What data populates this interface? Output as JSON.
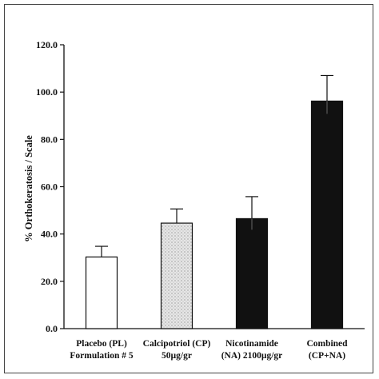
{
  "chart_data": {
    "type": "bar",
    "ylabel": "% Orthokeratosis / Scale",
    "ylim": [
      0,
      120
    ],
    "yticks": [
      "0.0",
      "20.0",
      "40.0",
      "60.0",
      "80.0",
      "100.0",
      "120.0"
    ],
    "grid": false,
    "categories": [
      {
        "line1": "Placebo (PL)",
        "line2": "Formulation # 5"
      },
      {
        "line1": "Calcipotriol (CP)",
        "line2": "50µg/gr"
      },
      {
        "line1": "Nicotinamide",
        "line2": "(NA) 2100µg/gr"
      },
      {
        "line1": "Combined",
        "line2": "(CP+NA)"
      }
    ],
    "values": [
      30.3,
      44.6,
      46.5,
      96.2
    ],
    "error_upper": [
      4.5,
      6.0,
      9.3,
      10.8
    ],
    "bar_fills": [
      "#ffffff",
      "#d9d9d9",
      "#111111",
      "#111111"
    ],
    "bar_styles": [
      "empty",
      "stippled",
      "solid",
      "solid"
    ]
  }
}
